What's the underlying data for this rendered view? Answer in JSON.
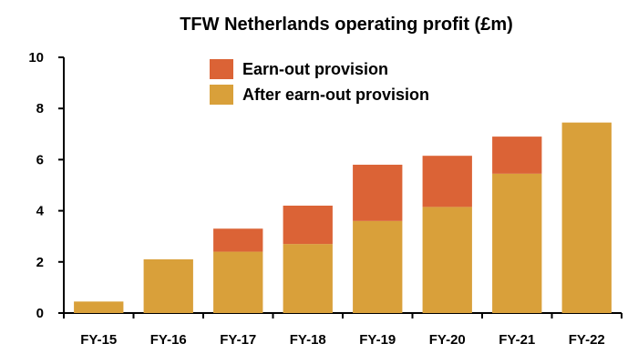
{
  "chart_data": {
    "type": "bar",
    "stacked": true,
    "title": "TFW Netherlands operating profit (£m)",
    "xlabel": "",
    "ylabel": "",
    "ylim": [
      0,
      10
    ],
    "yticks": [
      "0",
      "2",
      "4",
      "6",
      "8",
      "10"
    ],
    "ytick_values": [
      0,
      2,
      4,
      6,
      8,
      10
    ],
    "categories": [
      "FY-15",
      "FY-16",
      "FY-17",
      "FY-18",
      "FY-19",
      "FY-20",
      "FY-21",
      "FY-22"
    ],
    "series": [
      {
        "name": "After earn-out provision",
        "color": "#D9A03A",
        "values": [
          0.45,
          2.1,
          2.4,
          2.7,
          3.6,
          4.15,
          5.45,
          7.45
        ]
      },
      {
        "name": "Earn-out provision",
        "color": "#DB6336",
        "values": [
          0,
          0,
          0.9,
          1.5,
          2.2,
          2.0,
          1.45,
          0
        ]
      }
    ],
    "legend": {
      "placement": "top-center",
      "items": [
        {
          "label": "Earn-out provision",
          "color": "#DB6336"
        },
        {
          "label": "After earn-out provision",
          "color": "#D9A03A"
        }
      ]
    },
    "grid": false
  }
}
